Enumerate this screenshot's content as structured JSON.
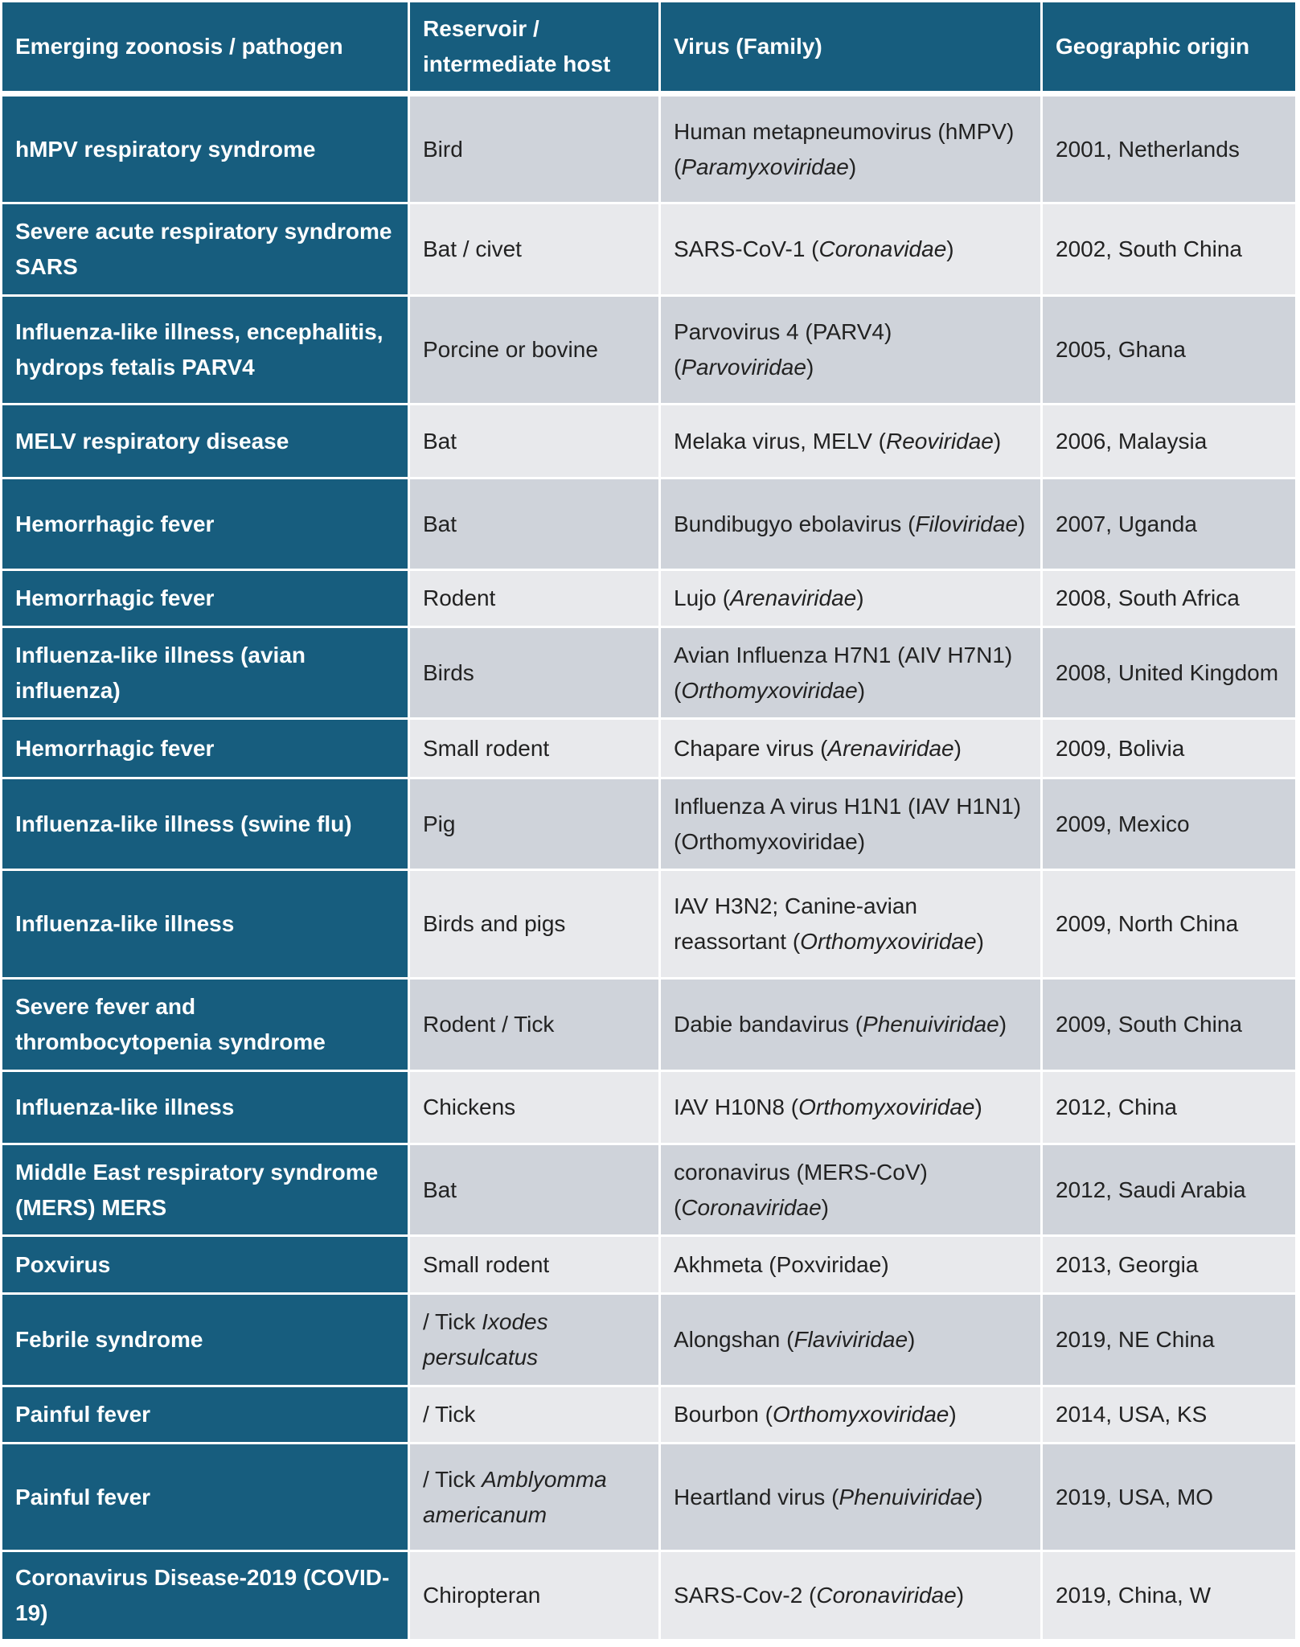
{
  "table": {
    "header": [
      "Emerging zoonosis / pathogen",
      "Reservoir / intermediate host",
      "Virus (Family)",
      "Geographic origin"
    ],
    "rows": [
      [
        "hMPV respiratory syndrome",
        "Bird",
        [
          "Human metapneumovirus (hMPV) (",
          "Paramyxoviridae",
          ")"
        ],
        "2001, Netherlands"
      ],
      [
        "Severe acute respiratory syndrome SARS",
        "Bat / civet",
        [
          "SARS-CoV-1 (",
          "Coronavidae",
          ")"
        ],
        "2002, South China"
      ],
      [
        "Influenza-like illness, encephalitis, hydrops fetalis PARV4",
        "Porcine or bovine",
        [
          "Parvovirus 4 (PARV4) (",
          "Parvoviridae",
          ")"
        ],
        "2005, Ghana"
      ],
      [
        "MELV respiratory disease",
        "Bat",
        [
          "Melaka virus, MELV (",
          "Reoviridae",
          ")"
        ],
        "2006, Malaysia"
      ],
      [
        "Hemorrhagic fever",
        "Bat",
        [
          "Bundibugyo ebolavirus (",
          "Filoviridae",
          ")"
        ],
        "2007, Uganda"
      ],
      [
        "Hemorrhagic fever",
        "Rodent",
        [
          "Lujo (",
          "Arenaviridae",
          ")"
        ],
        "2008, South Africa"
      ],
      [
        "Influenza-like illness (avian influenza)",
        "Birds",
        [
          "Avian Influenza H7N1 (AIV H7N1) (",
          "Orthomyxoviridae",
          ")"
        ],
        "2008, United Kingdom"
      ],
      [
        "Hemorrhagic fever",
        "Small rodent",
        [
          "Chapare virus (",
          "Arenaviridae",
          ")"
        ],
        "2009, Bolivia"
      ],
      [
        "Influenza-like illness (swine flu)",
        "Pig",
        "Influenza A virus H1N1 (IAV H1N1) (Orthomyxoviridae)",
        "2009, Mexico"
      ],
      [
        "Influenza-like illness",
        "Birds and pigs",
        [
          "IAV H3N2; Canine-avian reassortant (",
          "Orthomyxoviridae",
          ")"
        ],
        "2009, North China"
      ],
      [
        "Severe fever and thrombocytopenia syndrome",
        "Rodent / Tick",
        [
          "Dabie bandavirus (",
          "Phenuiviridae",
          ")"
        ],
        "2009, South China"
      ],
      [
        "Influenza-like illness",
        "Chickens",
        [
          "IAV H10N8 (",
          "Orthomyxoviridae",
          ")"
        ],
        "2012, China"
      ],
      [
        "Middle East respiratory syndrome (MERS) MERS",
        "Bat",
        [
          "coronavirus (MERS-CoV) (",
          "Coronaviridae",
          ")"
        ],
        "2012, Saudi Arabia"
      ],
      [
        "Poxvirus",
        "Small rodent",
        "Akhmeta (Poxviridae)",
        "2013, Georgia"
      ],
      [
        "Febrile syndrome",
        [
          "/ Tick ",
          "Ixodes persulcatus"
        ],
        [
          "Alongshan (",
          "Flaviviridae",
          ")"
        ],
        "2019, NE China"
      ],
      [
        "Painful fever",
        "/ Tick",
        [
          "Bourbon (",
          "Orthomyxoviridae",
          ")"
        ],
        "2014, USA, KS"
      ],
      [
        "Painful fever",
        [
          "/ Tick ",
          "Amblyomma americanum"
        ],
        [
          "Heartland virus (",
          "Phenuiviridae",
          ")"
        ],
        "2019, USA, MO"
      ],
      [
        "Coronavirus Disease-2019 (COVID-19)",
        "Chiropteran",
        [
          "SARS-Cov-2 (",
          "Coronaviridae",
          ")"
        ],
        "2019, China, W"
      ]
    ]
  }
}
